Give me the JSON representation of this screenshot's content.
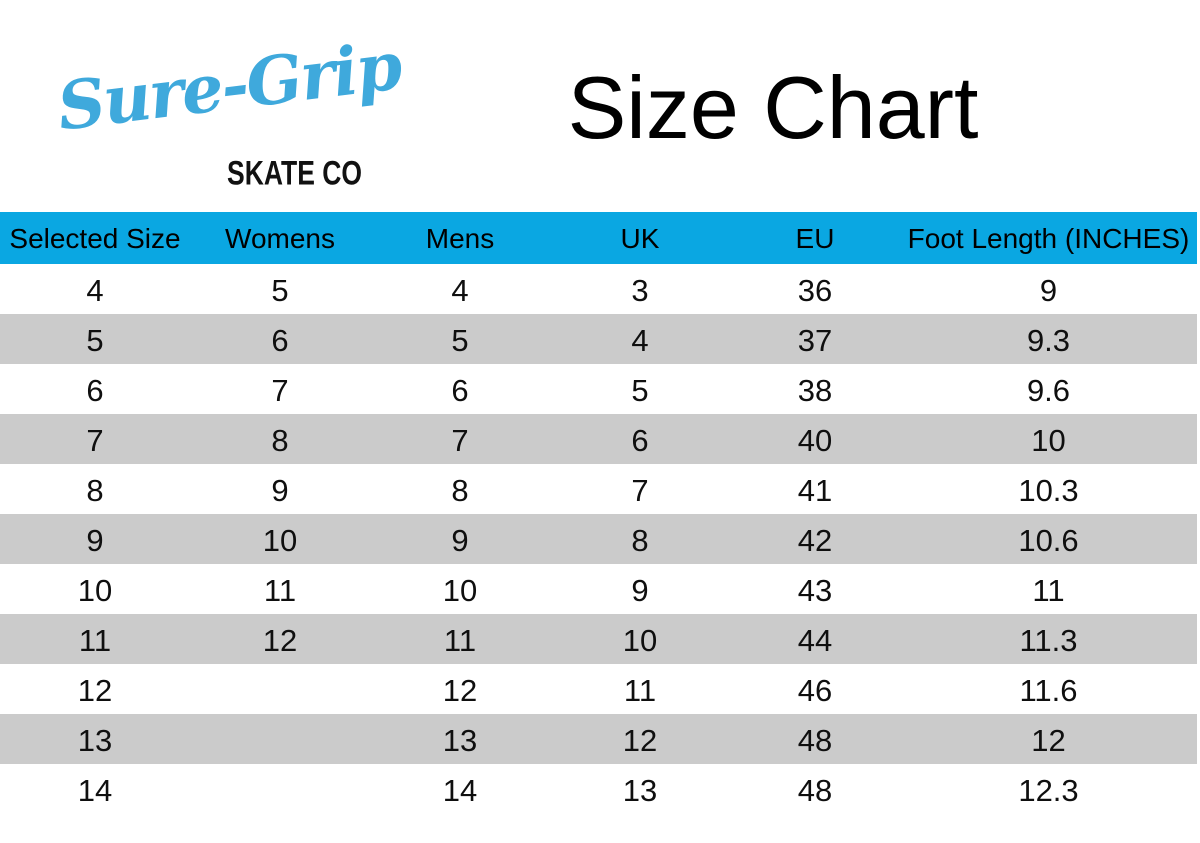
{
  "logo": {
    "brand": "Sure-Grip",
    "subtitle": "SKATE CO"
  },
  "title": "Size Chart",
  "colors": {
    "header_bg": "#0aa7e2",
    "row_alt_bg": "#cbcbcb",
    "logo_blue": "#3fa9dc",
    "text": "#0f0f0f"
  },
  "chart_data": {
    "type": "table",
    "title": "Size Chart",
    "columns": [
      "Selected Size",
      "Womens",
      "Mens",
      "UK",
      "EU",
      "Foot Length (INCHES)"
    ],
    "rows": [
      [
        "4",
        "5",
        "4",
        "3",
        "36",
        "9"
      ],
      [
        "5",
        "6",
        "5",
        "4",
        "37",
        "9.3"
      ],
      [
        "6",
        "7",
        "6",
        "5",
        "38",
        "9.6"
      ],
      [
        "7",
        "8",
        "7",
        "6",
        "40",
        "10"
      ],
      [
        "8",
        "9",
        "8",
        "7",
        "41",
        "10.3"
      ],
      [
        "9",
        "10",
        "9",
        "8",
        "42",
        "10.6"
      ],
      [
        "10",
        "11",
        "10",
        "9",
        "43",
        "11"
      ],
      [
        "11",
        "12",
        "11",
        "10",
        "44",
        "11.3"
      ],
      [
        "12",
        "",
        "12",
        "11",
        "46",
        "11.6"
      ],
      [
        "13",
        "",
        "13",
        "12",
        "48",
        "12"
      ],
      [
        "14",
        "",
        "14",
        "13",
        "48",
        "12.3"
      ]
    ],
    "layout": {
      "header_style": "solid cyan band, black regular text",
      "row_striping": "odd rows white, even rows light gray",
      "alignment": "all cells centered"
    }
  }
}
